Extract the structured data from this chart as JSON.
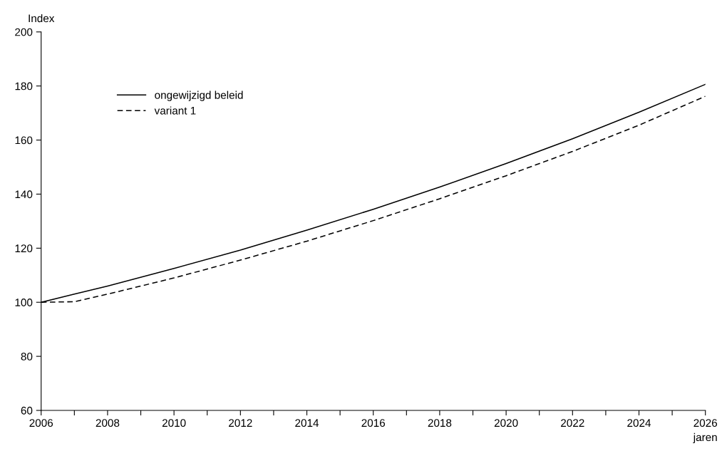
{
  "chart_data": {
    "type": "line",
    "ylabel": "Index",
    "xlabel": "jaren",
    "x": [
      2006,
      2007,
      2008,
      2010,
      2012,
      2014,
      2016,
      2018,
      2020,
      2022,
      2024,
      2026
    ],
    "series": [
      {
        "name": "ongewijzigd beleid",
        "color": "#000000",
        "line_style": "solid",
        "values": [
          100,
          103,
          106,
          112.5,
          119.3,
          126.7,
          134.4,
          142.6,
          151.3,
          160.5,
          170.3,
          180.6
        ]
      },
      {
        "name": "variant 1",
        "color": "#000000",
        "line_style": "dashed",
        "values": [
          100,
          100.2,
          103,
          109,
          115.6,
          122.6,
          130.2,
          138.3,
          146.8,
          155.8,
          165.5,
          176.2
        ]
      }
    ],
    "xlim": [
      2006,
      2026
    ],
    "xticks": [
      2006,
      {
        "value": 2007,
        "label": null
      },
      2008,
      {
        "value": 2009,
        "label": null
      },
      2010,
      {
        "value": 2011,
        "label": null
      },
      2012,
      {
        "value": 2013,
        "label": null
      },
      2014,
      {
        "value": 2015,
        "label": null
      },
      2016,
      {
        "value": 2017,
        "label": null
      },
      2018,
      {
        "value": 2019,
        "label": null
      },
      2020,
      {
        "value": 2021,
        "label": null
      },
      2022,
      {
        "value": 2023,
        "label": null
      },
      2024,
      {
        "value": 2025,
        "label": null
      },
      2026
    ],
    "ylim": [
      60,
      200
    ],
    "yticks": [
      60,
      80,
      100,
      120,
      140,
      160,
      180,
      200
    ],
    "grid": false,
    "legend": "top left",
    "marker": "none"
  }
}
